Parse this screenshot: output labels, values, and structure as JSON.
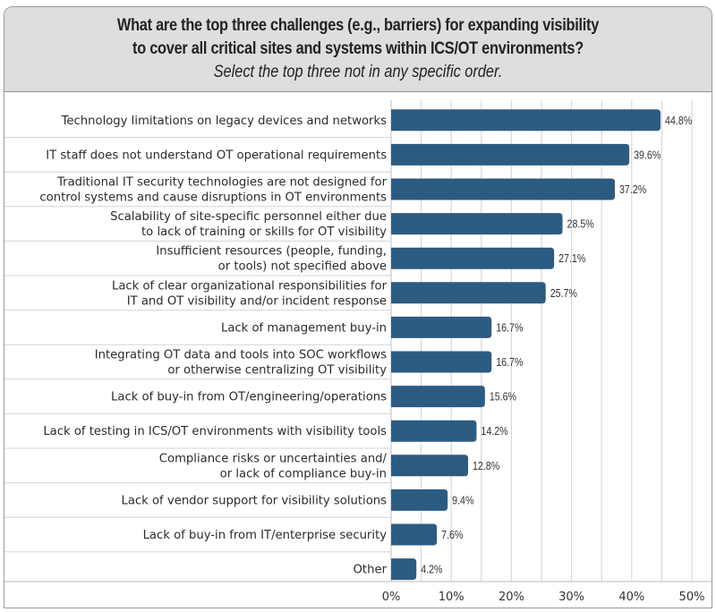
{
  "chart_data": {
    "type": "bar",
    "orientation": "horizontal",
    "title": "What are the top three challenges (e.g., barriers) for expanding visibility to cover all critical sites and systems within ICS/OT environments?",
    "title_lines": [
      "What are the top three challenges (e.g., barriers) for expanding visibility",
      "to cover all critical sites and systems within ICS/OT environments?"
    ],
    "subtitle": "Select the top three not in any specific order.",
    "xlabel": "",
    "ylabel": "",
    "xlim": [
      0,
      50
    ],
    "x_ticks": [
      0,
      10,
      20,
      30,
      40,
      50
    ],
    "x_tick_labels": [
      "0%",
      "10%",
      "20%",
      "30%",
      "40%",
      "50%"
    ],
    "grid_step": 5,
    "grid": true,
    "bar_color": "#2c5b82",
    "categories": [
      [
        "Technology limitations on legacy devices and networks"
      ],
      [
        "IT staff does not understand OT operational requirements"
      ],
      [
        "Traditional IT security technologies are not designed for",
        "control systems and cause disruptions in OT environments"
      ],
      [
        "Scalability of site-specific personnel either due",
        "to lack of training or skills for OT visibility"
      ],
      [
        "Insufficient resources (people, funding,",
        "or tools) not specified above"
      ],
      [
        "Lack of clear organizational responsibilities for",
        "IT and OT visibility and/or incident response"
      ],
      [
        "Lack of management buy-in"
      ],
      [
        "Integrating OT data and tools into SOC workflows",
        "or otherwise centralizing OT visibility"
      ],
      [
        "Lack of buy-in from OT/engineering/operations"
      ],
      [
        "Lack of testing in ICS/OT environments with visibility tools"
      ],
      [
        "Compliance risks or uncertainties and/",
        "or lack of compliance buy-in"
      ],
      [
        "Lack of vendor support for visibility solutions"
      ],
      [
        "Lack of buy-in from IT/enterprise security"
      ],
      [
        "Other"
      ]
    ],
    "values": [
      44.8,
      39.6,
      37.2,
      28.5,
      27.1,
      25.7,
      16.7,
      16.7,
      15.6,
      14.2,
      12.8,
      9.4,
      7.6,
      4.2
    ],
    "value_labels": [
      "44.8%",
      "39.6%",
      "37.2%",
      "28.5%",
      "27.1%",
      "25.7%",
      "16.7%",
      "16.7%",
      "15.6%",
      "14.2%",
      "12.8%",
      "9.4%",
      "7.6%",
      "4.2%"
    ]
  }
}
